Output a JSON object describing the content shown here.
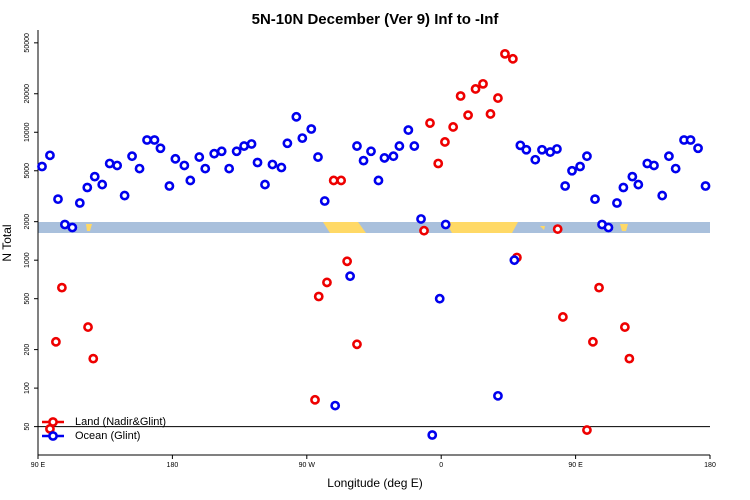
{
  "chart_data": {
    "type": "scatter",
    "title": "5N-10N December (Ver 9)   Inf to -Inf",
    "x_label": "Longitude (deg E)",
    "y_label": "N Total",
    "log_y": true,
    "xlim": [
      90,
      540
    ],
    "xticks": [
      {
        "value": 90,
        "label": "90 E"
      },
      {
        "value": 180,
        "label": "180"
      },
      {
        "value": 270,
        "label": "90 W"
      },
      {
        "value": 360,
        "label": "0"
      },
      {
        "value": 450,
        "label": "90 E"
      },
      {
        "value": 540,
        "label": "180"
      }
    ],
    "ylim": [
      30,
      63000
    ],
    "yticks": [
      50,
      100,
      200,
      500,
      1000,
      2000,
      5000,
      10000,
      20000,
      50000
    ],
    "reference_line": 50,
    "legend": "bottom-left",
    "series": [
      {
        "name": "Land (Nadir&Glint)",
        "color": "#ee0000",
        "x": [
          98,
          102,
          106,
          123.5,
          127,
          275.5,
          278,
          283.5,
          288,
          293,
          297,
          303.6,
          348.5,
          352.5,
          358,
          362.5,
          368,
          373,
          378,
          383,
          388,
          393,
          398,
          402.7,
          408,
          410.7,
          438,
          441.5,
          457.6,
          461.6,
          465.7,
          483,
          486
        ],
        "values": [
          48,
          230,
          610,
          300,
          170,
          81,
          520,
          670,
          4200,
          4200,
          980,
          220,
          1700,
          11800,
          5700,
          8400,
          11000,
          19200,
          13600,
          21800,
          23900,
          13900,
          18500,
          41000,
          37500,
          1050,
          1750,
          360,
          47,
          230,
          610,
          300,
          170
        ]
      },
      {
        "name": "Ocean (Glint)",
        "color": "#0000ee",
        "x": [
          92.7,
          98,
          103.4,
          108,
          113,
          118,
          123,
          128,
          133,
          138,
          143,
          148,
          153,
          158,
          163,
          168,
          172,
          178,
          182,
          188,
          192,
          198,
          202,
          208,
          213,
          218,
          223,
          228,
          233,
          237,
          242,
          247,
          253,
          257,
          263,
          267,
          273,
          277.5,
          282,
          289,
          299,
          303.6,
          308,
          313,
          318,
          322,
          328,
          332,
          338,
          342,
          346.5,
          354,
          359,
          363,
          398,
          409,
          413,
          417,
          423,
          427.5,
          433,
          437.5,
          443,
          447.6,
          453,
          457.6,
          463,
          467.7,
          472,
          477.7,
          482,
          488,
          492,
          498,
          502.5,
          508,
          512.5,
          517,
          522.6,
          527,
          532,
          537
        ],
        "values": [
          5400,
          6600,
          3000,
          1900,
          1800,
          2800,
          3700,
          4500,
          3900,
          5700,
          5500,
          3200,
          6500,
          5200,
          8700,
          8700,
          7500,
          3800,
          6200,
          5500,
          4200,
          6400,
          5200,
          6800,
          7100,
          5200,
          7100,
          7800,
          8100,
          5800,
          3900,
          5600,
          5300,
          8200,
          13200,
          9000,
          10600,
          6400,
          2900,
          73,
          750,
          7800,
          6000,
          7100,
          4200,
          6300,
          6500,
          7800,
          10400,
          7800,
          2100,
          43,
          500,
          1900,
          87,
          1000,
          7900,
          7300,
          6100,
          7300,
          7000,
          7400,
          3800,
          5000,
          5400,
          6500,
          3000,
          1900,
          1800,
          2800,
          3700,
          4500,
          3900,
          5700,
          5500,
          3200,
          6500,
          5200,
          8700,
          8700,
          7500,
          3800
        ]
      }
    ]
  }
}
